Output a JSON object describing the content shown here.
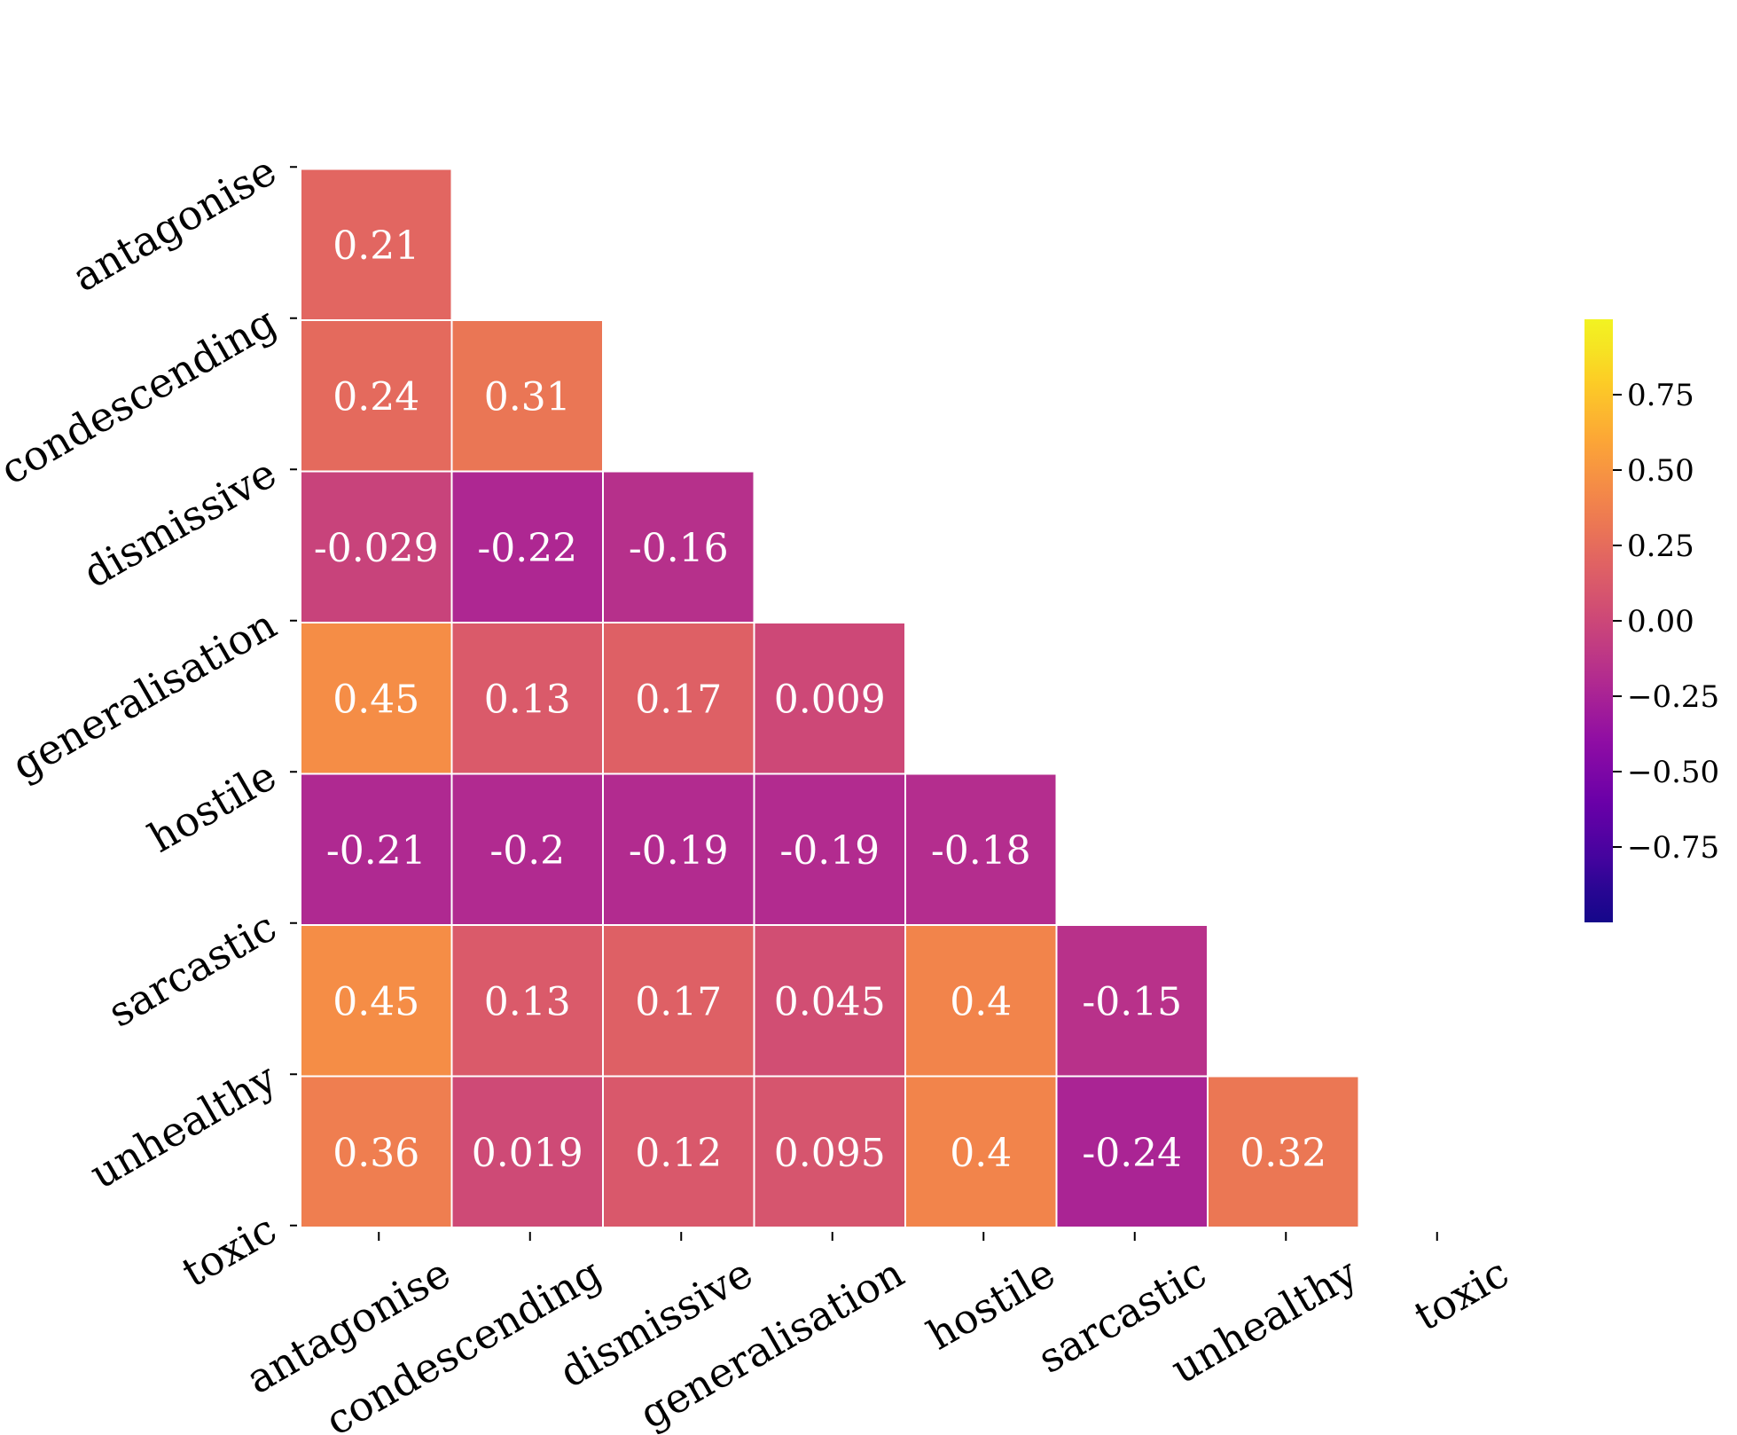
{
  "chart_data": {
    "type": "heatmap",
    "title": "",
    "xlabel": "",
    "ylabel": "",
    "labels": [
      "antagonise",
      "condescending",
      "dismissive",
      "generalisation",
      "hostile",
      "sarcastic",
      "unhealthy",
      "toxic"
    ],
    "matrix": [
      [
        null,
        null,
        null,
        null,
        null,
        null,
        null,
        null
      ],
      [
        0.21,
        null,
        null,
        null,
        null,
        null,
        null,
        null
      ],
      [
        0.24,
        0.31,
        null,
        null,
        null,
        null,
        null,
        null
      ],
      [
        -0.029,
        -0.22,
        -0.16,
        null,
        null,
        null,
        null,
        null
      ],
      [
        0.45,
        0.13,
        0.17,
        0.009,
        null,
        null,
        null,
        null
      ],
      [
        -0.21,
        -0.2,
        -0.19,
        -0.19,
        -0.18,
        null,
        null,
        null
      ],
      [
        0.45,
        0.13,
        0.17,
        0.045,
        0.4,
        -0.15,
        null,
        null
      ],
      [
        0.36,
        0.019,
        0.12,
        0.095,
        0.4,
        -0.24,
        0.32,
        null
      ]
    ],
    "annotations": [
      [
        null,
        null,
        null,
        null,
        null,
        null,
        null,
        null
      ],
      [
        "0.21",
        null,
        null,
        null,
        null,
        null,
        null,
        null
      ],
      [
        "0.24",
        "0.31",
        null,
        null,
        null,
        null,
        null,
        null
      ],
      [
        "-0.029",
        "-0.22",
        "-0.16",
        null,
        null,
        null,
        null,
        null
      ],
      [
        "0.45",
        "0.13",
        "0.17",
        "0.009",
        null,
        null,
        null,
        null
      ],
      [
        "-0.21",
        "-0.2",
        "-0.19",
        "-0.19",
        "-0.18",
        null,
        null,
        null
      ],
      [
        "0.45",
        "0.13",
        "0.17",
        "0.045",
        "0.4",
        "-0.15",
        null,
        null
      ],
      [
        "0.36",
        "0.019",
        "0.12",
        "0.095",
        "0.4",
        "-0.24",
        "0.32",
        null
      ]
    ],
    "mask": "upper-triangle",
    "colormap": "plasma",
    "vmin": -1,
    "vmax": 1,
    "colorbar": {
      "ticks": [
        0.75,
        0.5,
        0.25,
        0.0,
        -0.25,
        -0.5,
        -0.75
      ],
      "tick_labels": [
        "0.75",
        "0.50",
        "0.25",
        "0.00",
        "−0.25",
        "−0.50",
        "−0.75"
      ],
      "placement": "right"
    }
  }
}
